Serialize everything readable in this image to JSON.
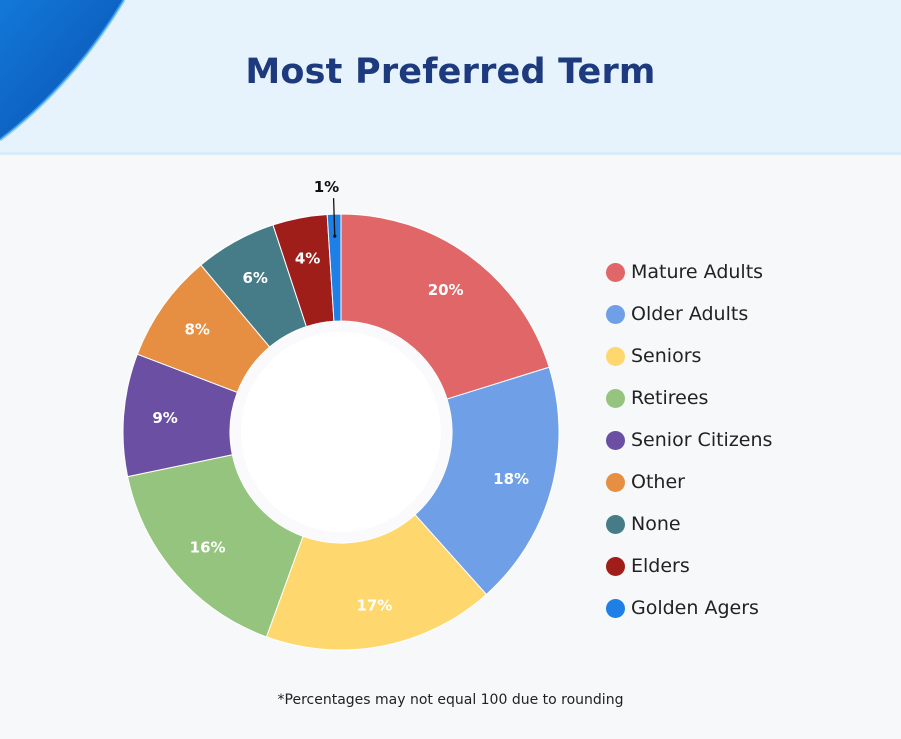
{
  "title": "Most Preferred Term",
  "footnote": "*Percentages may not equal 100 due to rounding",
  "chart_data": {
    "type": "pie",
    "variant": "donut",
    "title": "Most Preferred Term",
    "legend_position": "right",
    "categories": [
      "Mature Adults",
      "Older Adults",
      "Seniors",
      "Retirees",
      "Senior Citizens",
      "Other",
      "None",
      "Elders",
      "Golden Agers"
    ],
    "values": [
      20,
      18,
      17,
      16,
      9,
      8,
      6,
      4,
      1
    ],
    "labels": [
      "20%",
      "18%",
      "17%",
      "16%",
      "9%",
      "8%",
      "6%",
      "4%",
      "1%"
    ],
    "colors": [
      "#e06668",
      "#6f9fe6",
      "#fed76e",
      "#94c47e",
      "#6a4fa3",
      "#e68f43",
      "#457c88",
      "#a01e1a",
      "#1e80e6"
    ]
  }
}
